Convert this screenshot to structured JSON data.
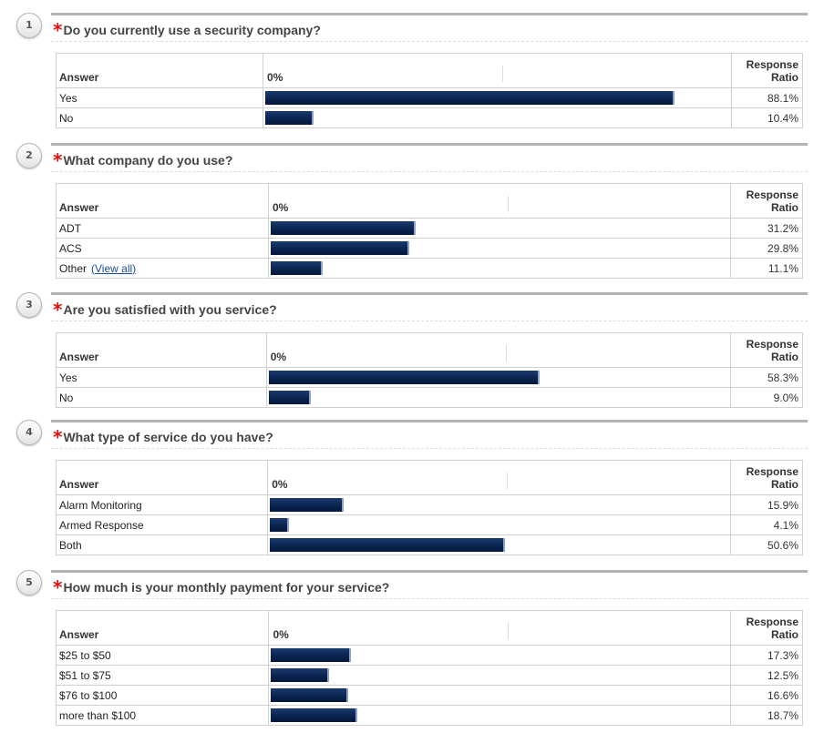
{
  "table_headers": {
    "answer": "Answer",
    "scale_start": "0%",
    "ratio_line1": "Response",
    "ratio_line2": "Ratio"
  },
  "questions": [
    {
      "number": "1",
      "required_mark": "*",
      "title": "Do you currently use a security company?",
      "answers": [
        {
          "label": "Yes",
          "ratio": "88.1%",
          "value": 88.1
        },
        {
          "label": "No",
          "ratio": "10.4%",
          "value": 10.4
        }
      ]
    },
    {
      "number": "2",
      "required_mark": "*",
      "title": "What company do you use?",
      "answers": [
        {
          "label": "ADT",
          "ratio": "31.2%",
          "value": 31.2
        },
        {
          "label": "ACS",
          "ratio": "29.8%",
          "value": 29.8
        },
        {
          "label": "Other",
          "link": "(View all)",
          "ratio": "11.1%",
          "value": 11.1
        }
      ]
    },
    {
      "number": "3",
      "required_mark": "*",
      "title": "Are you satisfied with you service?",
      "answers": [
        {
          "label": "Yes",
          "ratio": "58.3%",
          "value": 58.3
        },
        {
          "label": "No",
          "ratio": "9.0%",
          "value": 9.0
        }
      ]
    },
    {
      "number": "4",
      "required_mark": "*",
      "title": "What type of service do you have?",
      "answers": [
        {
          "label": "Alarm Monitoring",
          "ratio": "15.9%",
          "value": 15.9
        },
        {
          "label": "Armed Response",
          "ratio": "4.1%",
          "value": 4.1
        },
        {
          "label": "Both",
          "ratio": "50.6%",
          "value": 50.6
        }
      ]
    },
    {
      "number": "5",
      "required_mark": "*",
      "title": "How much is your monthly payment for your service?",
      "answers": [
        {
          "label": "$25 to $50",
          "ratio": "17.3%",
          "value": 17.3
        },
        {
          "label": "$51 to $75",
          "ratio": "12.5%",
          "value": 12.5
        },
        {
          "label": "$76 to $100",
          "ratio": "16.6%",
          "value": 16.6
        },
        {
          "label": "more than $100",
          "ratio": "18.7%",
          "value": 18.7
        }
      ]
    }
  ],
  "colors": {
    "bar": "#0a2450",
    "required": "#e01010",
    "link": "#1a4fa0"
  }
}
